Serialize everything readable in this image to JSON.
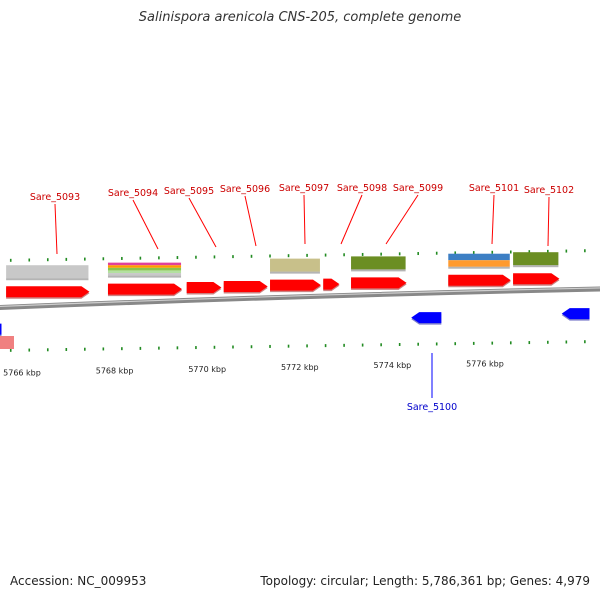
{
  "title": "Salinispora arenicola CNS-205, complete genome",
  "accession": "Accession: NC_009953",
  "summary": "Topology: circular; Length: 5,786,361 bp; Genes: 4,979",
  "colors": {
    "forward_gene": "#ff0000",
    "reverse_gene": "#0000ff",
    "forward_label": "#cc0000",
    "reverse_label": "#0000cc",
    "tick": "#228b22",
    "backbone": "#888888"
  },
  "positions_kbp": [
    {
      "label": "5766 kbp",
      "kbp": 5766
    },
    {
      "label": "5768 kbp",
      "kbp": 5768
    },
    {
      "label": "5770 kbp",
      "kbp": 5770
    },
    {
      "label": "5772 kbp",
      "kbp": 5772
    },
    {
      "label": "5774 kbp",
      "kbp": 5774
    },
    {
      "label": "5776 kbp",
      "kbp": 5776
    }
  ],
  "forward_genes": [
    {
      "name": "Sare_5093",
      "start_kbp": 5765.7,
      "end_kbp": 5767.5,
      "labeled": true
    },
    {
      "name": "Sare_5094",
      "start_kbp": 5767.9,
      "end_kbp": 5769.5,
      "labeled": true
    },
    {
      "name": "Sare_5095",
      "start_kbp": 5769.6,
      "end_kbp": 5770.35,
      "labeled": true
    },
    {
      "name": "Sare_5096",
      "start_kbp": 5770.4,
      "end_kbp": 5771.35,
      "labeled": true
    },
    {
      "name": "Sare_5097",
      "start_kbp": 5771.4,
      "end_kbp": 5772.5,
      "labeled": true
    },
    {
      "name": "Sare_5098",
      "start_kbp": 5772.55,
      "end_kbp": 5772.9,
      "labeled": true
    },
    {
      "name": "Sare_5099",
      "start_kbp": 5773.15,
      "end_kbp": 5774.35,
      "labeled": true
    },
    {
      "name": "Sare_5101",
      "start_kbp": 5775.25,
      "end_kbp": 5776.6,
      "labeled": true
    },
    {
      "name": "Sare_5102",
      "start_kbp": 5776.65,
      "end_kbp": 5777.65,
      "labeled": true
    }
  ],
  "reverse_genes": [
    {
      "name": "Sare_5100",
      "start_kbp": 5774.45,
      "end_kbp": 5775.1,
      "labeled": true
    },
    {
      "name": "",
      "start_kbp": 5765.3,
      "end_kbp": 5765.6,
      "labeled": false
    },
    {
      "name": "",
      "start_kbp": 5777.7,
      "end_kbp": 5778.3,
      "labeled": false
    }
  ],
  "feature_tracks": [
    {
      "gene": "Sare_5093",
      "colors": [
        "#c8c8c8"
      ]
    },
    {
      "gene": "Sare_5094",
      "colors": [
        "#e0409a",
        "#ff9a00",
        "#8bc34a",
        "#b3e0a0",
        "#c8c8c8"
      ]
    },
    {
      "gene": "Sare_5097",
      "colors": [
        "#c8c08a"
      ]
    },
    {
      "gene": "Sare_5099",
      "colors": [
        "#6b8e23"
      ]
    },
    {
      "gene": "Sare_5101",
      "colors": [
        "#3d7fc4",
        "#ff9a2e"
      ]
    },
    {
      "gene": "Sare_5102",
      "colors": [
        "#6b8e23"
      ]
    }
  ]
}
